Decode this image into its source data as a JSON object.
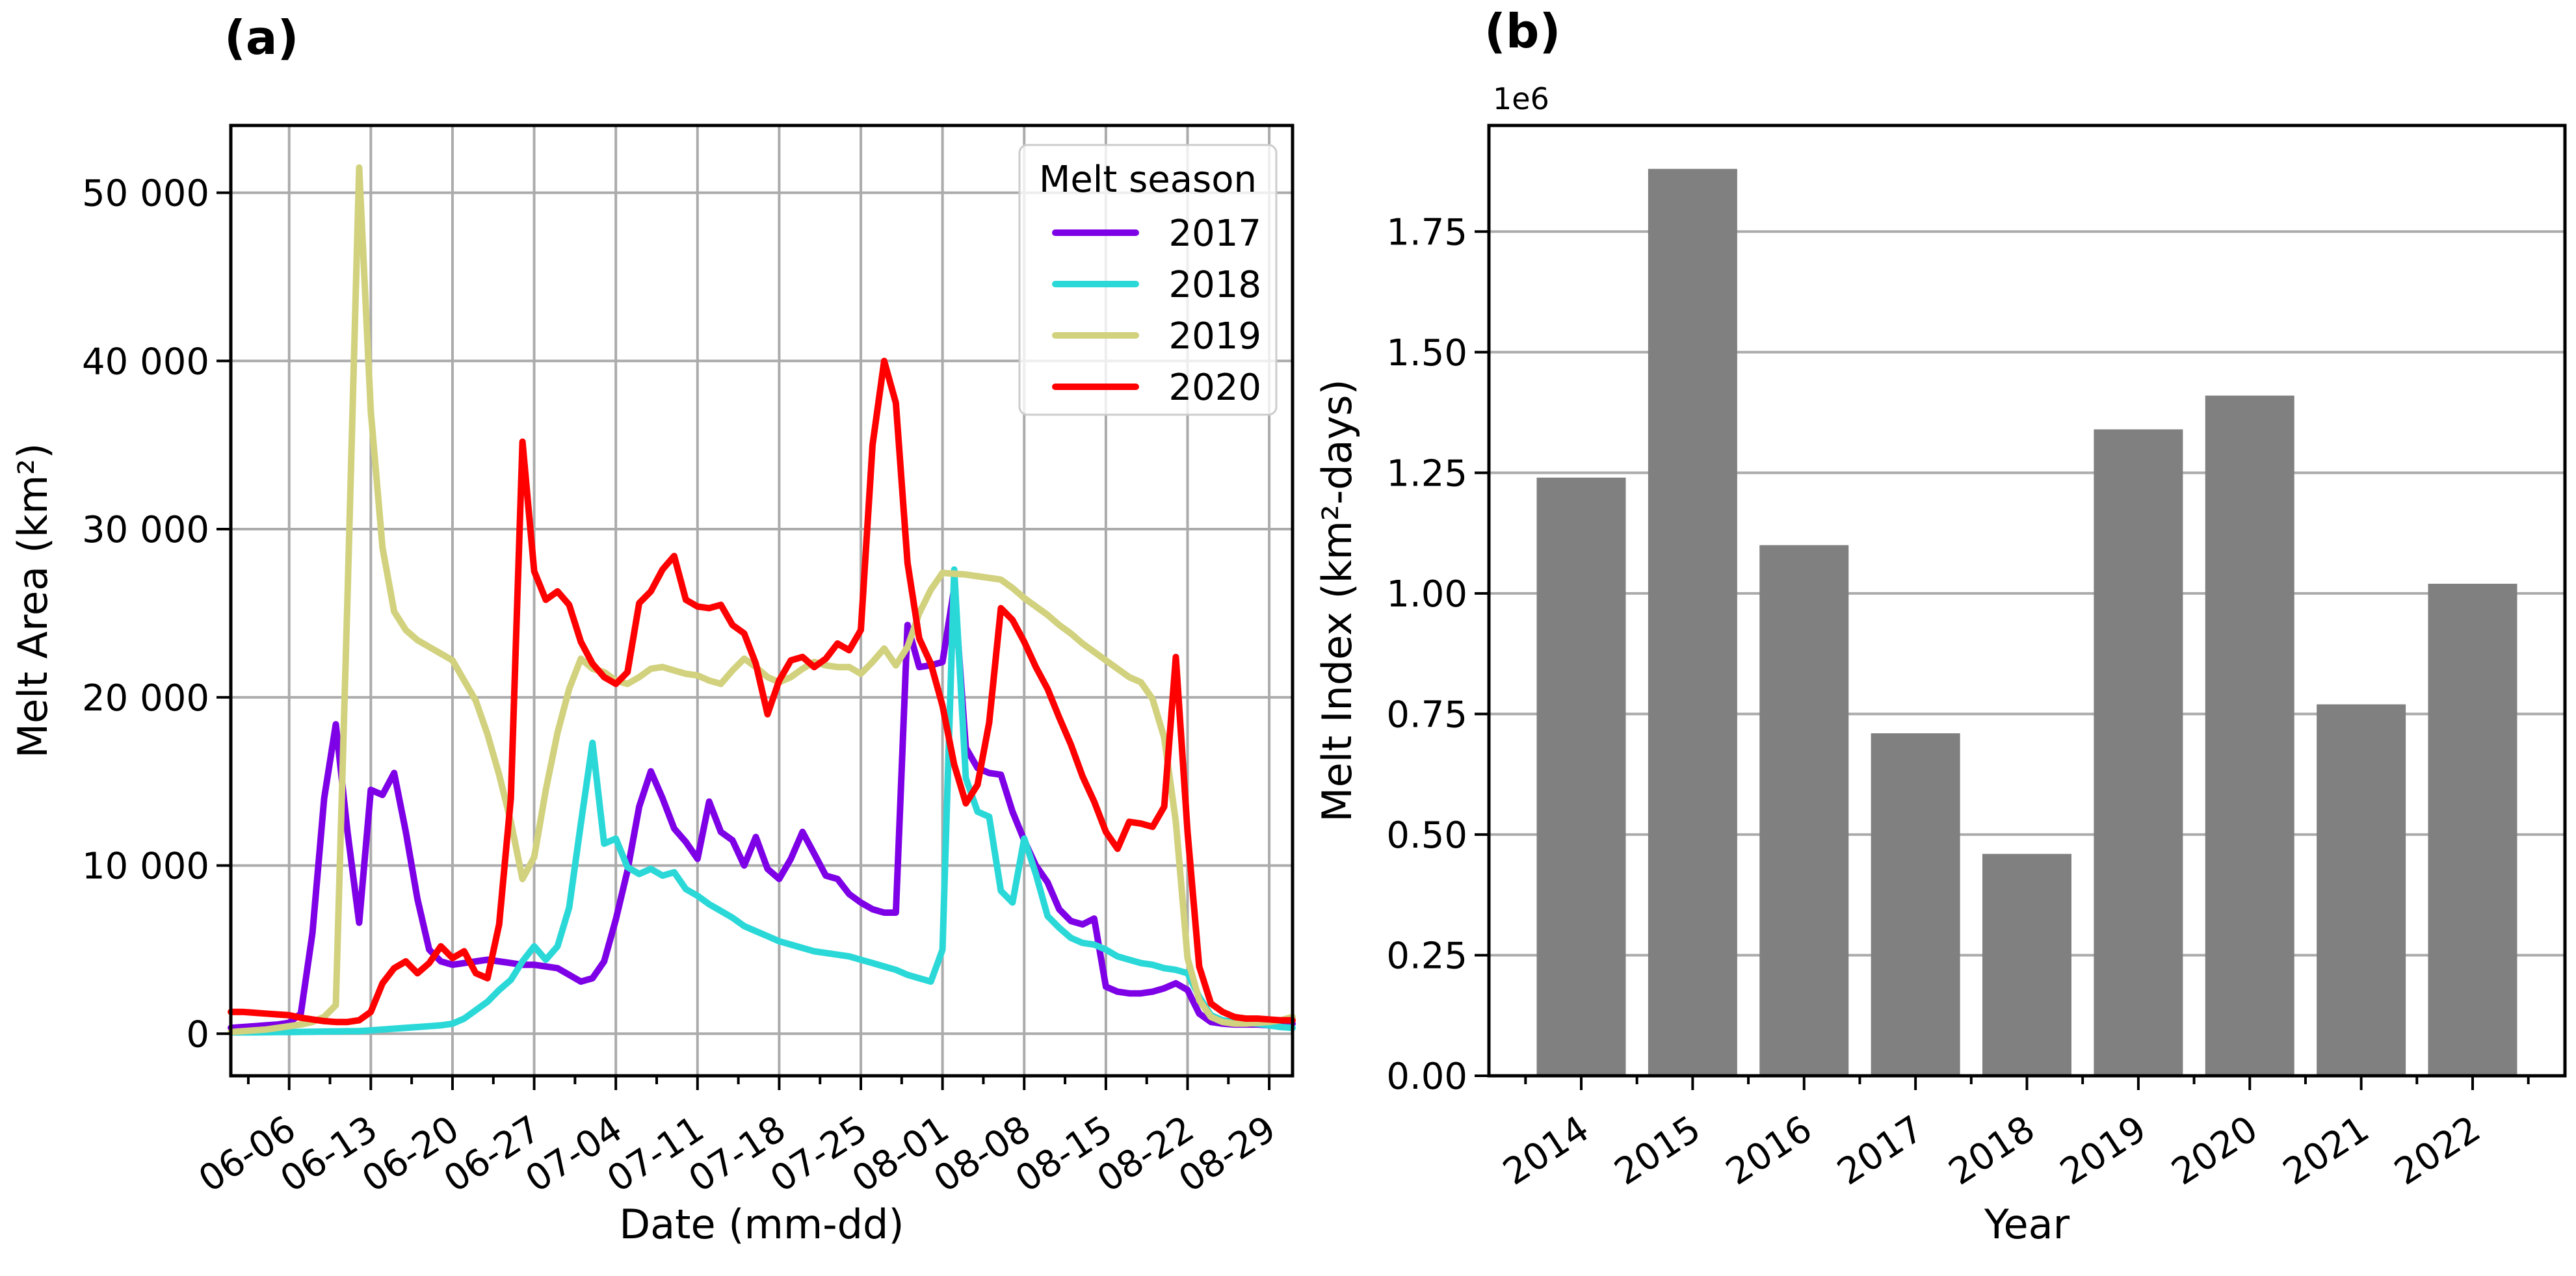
{
  "figure": {
    "panel_a_tag": "(a)",
    "panel_b_tag": "(b)",
    "background": "#FFFFFF"
  },
  "style": {
    "grid_color": "#ABABAB",
    "spine_color": "#000000",
    "tick_color": "#000000",
    "text_color": "#000000",
    "legend_border": "#CCCCCC",
    "legend_fill_alpha": 0.8
  },
  "chart_data": [
    {
      "id": "panel_a_melt_area_timeseries",
      "type": "line",
      "xlabel": "Date (mm-dd)",
      "ylabel": "Melt Area (km²)",
      "legend_title": "Melt season",
      "legend_position": "upper right",
      "grid": "both",
      "x_start_date": "06-01",
      "x_cadence_days": 1,
      "x_total_days": 92,
      "x_tick_labels": [
        "06-06",
        "06-13",
        "06-20",
        "06-27",
        "07-04",
        "07-11",
        "07-18",
        "07-25",
        "08-01",
        "08-08",
        "08-15",
        "08-22",
        "08-29"
      ],
      "x_tick_day_index": [
        5,
        12,
        19,
        26,
        33,
        40,
        47,
        54,
        61,
        68,
        75,
        82,
        89
      ],
      "x_minor_tick_day_index": [
        1.5,
        8.5,
        15.5,
        22.5,
        29.5,
        36.5,
        43.5,
        50.5,
        57.5,
        64.5,
        71.5,
        78.5,
        85.5
      ],
      "ylim": [
        -2500,
        54000
      ],
      "yticks": [
        0,
        10000,
        20000,
        30000,
        40000,
        50000
      ],
      "ytick_labels": [
        "0",
        "10 000",
        "20 000",
        "30 000",
        "40 000",
        "50 000"
      ],
      "series": [
        {
          "name": "2017",
          "color": "#7D00E6",
          "values": [
            350,
            400,
            450,
            500,
            550,
            650,
            1200,
            6000,
            14000,
            18400,
            12000,
            6600,
            14500,
            14200,
            15500,
            12000,
            8000,
            5000,
            4300,
            4100,
            4200,
            4300,
            4400,
            4300,
            4200,
            4100,
            4100,
            4000,
            3900,
            3500,
            3100,
            3300,
            4300,
            6800,
            9700,
            13500,
            15600,
            14000,
            12200,
            11400,
            10400,
            13800,
            12000,
            11500,
            10000,
            11700,
            9800,
            9200,
            10400,
            12000,
            10700,
            9400,
            9200,
            8300,
            7800,
            7400,
            7200,
            7200,
            24300,
            21800,
            21900,
            22100,
            26500,
            17000,
            15800,
            15500,
            15400,
            13200,
            11500,
            10000,
            9000,
            7400,
            6700,
            6500,
            6850,
            2800,
            2500,
            2400,
            2400,
            2500,
            2700,
            3000,
            2600,
            1200,
            700,
            600,
            550,
            550,
            550,
            500,
            550,
            600
          ]
        },
        {
          "name": "2018",
          "color": "#2BD8D8",
          "values": [
            80,
            80,
            80,
            90,
            100,
            100,
            110,
            120,
            130,
            140,
            150,
            160,
            200,
            250,
            300,
            350,
            400,
            450,
            500,
            600,
            900,
            1400,
            1900,
            2600,
            3200,
            4300,
            5200,
            4400,
            5200,
            7500,
            12500,
            17300,
            11300,
            11600,
            9900,
            9500,
            9800,
            9400,
            9600,
            8600,
            8200,
            7700,
            7300,
            6900,
            6400,
            6100,
            5800,
            5500,
            5300,
            5100,
            4900,
            4800,
            4700,
            4600,
            4400,
            4200,
            4000,
            3800,
            3500,
            3300,
            3100,
            5000,
            27600,
            15200,
            13200,
            12900,
            8500,
            7800,
            11600,
            9500,
            7000,
            6300,
            5700,
            5400,
            5300,
            5000,
            4600,
            4400,
            4200,
            4100,
            3900,
            3800,
            3600,
            2200,
            1100,
            800,
            700,
            650,
            600,
            500,
            400,
            350
          ]
        },
        {
          "name": "2019",
          "color": "#D1D17E",
          "values": [
            100,
            150,
            200,
            250,
            350,
            450,
            550,
            700,
            1000,
            1700,
            26000,
            51500,
            37000,
            28900,
            25100,
            24000,
            23400,
            23000,
            22600,
            22200,
            21000,
            19800,
            17800,
            15400,
            12600,
            9200,
            10500,
            14500,
            17900,
            20500,
            22300,
            21700,
            21500,
            21000,
            20800,
            21200,
            21700,
            21800,
            21600,
            21400,
            21300,
            21000,
            20800,
            21600,
            22300,
            21800,
            21200,
            20900,
            21200,
            21700,
            22100,
            21900,
            21800,
            21800,
            21400,
            22100,
            22900,
            21900,
            23000,
            25000,
            26400,
            27400,
            27350,
            27300,
            27200,
            27100,
            27000,
            26500,
            25900,
            25400,
            24900,
            24300,
            23800,
            23200,
            22700,
            22200,
            21700,
            21200,
            20900,
            19900,
            17600,
            12600,
            4500,
            2000,
            1000,
            700,
            600,
            600,
            650,
            700,
            800,
            1000
          ]
        },
        {
          "name": "2020",
          "color": "#FF0000",
          "values": [
            1300,
            1300,
            1250,
            1200,
            1150,
            1100,
            950,
            850,
            750,
            700,
            700,
            800,
            1300,
            3000,
            3900,
            4300,
            3600,
            4200,
            5200,
            4500,
            4900,
            3600,
            3300,
            6500,
            14000,
            35200,
            27500,
            25800,
            26300,
            25500,
            23300,
            22000,
            21200,
            20800,
            21500,
            25600,
            26300,
            27600,
            28400,
            25800,
            25400,
            25300,
            25500,
            24300,
            23800,
            22000,
            19000,
            21000,
            22200,
            22400,
            21800,
            22300,
            23200,
            22800,
            24000,
            35000,
            40000,
            37500,
            28000,
            23500,
            22000,
            19500,
            16000,
            13700,
            14800,
            18500,
            25300,
            24600,
            23300,
            21800,
            20500,
            18800,
            17200,
            15300,
            13800,
            12000,
            11000,
            12600,
            12500,
            12300,
            13500,
            22400,
            12000,
            4000,
            1800,
            1300,
            1000,
            900,
            900,
            850,
            800,
            800
          ]
        }
      ]
    },
    {
      "id": "panel_b_melt_index_by_year",
      "type": "bar",
      "xlabel": "Year",
      "ylabel": "Melt Index (km²-days)",
      "offset_text": "1e6",
      "grid": "horizontal",
      "categories": [
        "2014",
        "2015",
        "2016",
        "2017",
        "2018",
        "2019",
        "2020",
        "2021",
        "2022"
      ],
      "values": [
        1240000,
        1880000,
        1100000,
        710000,
        460000,
        1340000,
        1410000,
        770000,
        1020000
      ],
      "bar_color": "#808080",
      "ylim": [
        0,
        1970000
      ],
      "yticks": [
        0,
        250000,
        500000,
        750000,
        1000000,
        1250000,
        1500000,
        1750000
      ],
      "ytick_labels": [
        "0.00",
        "0.25",
        "0.50",
        "0.75",
        "1.00",
        "1.25",
        "1.50",
        "1.75"
      ]
    }
  ]
}
